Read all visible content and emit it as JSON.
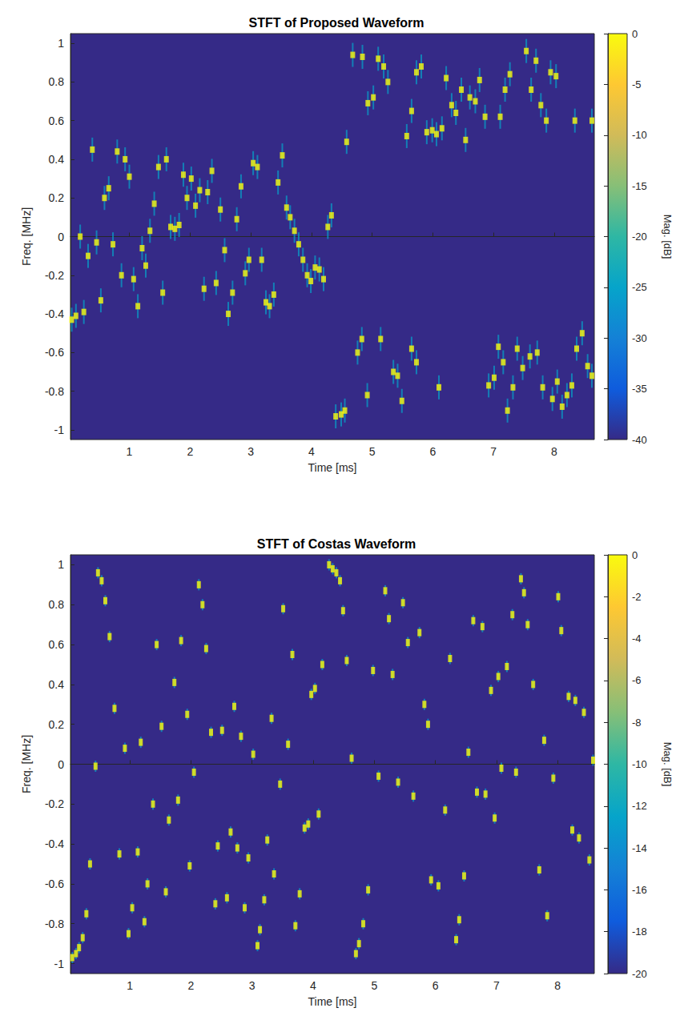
{
  "chart_data": [
    {
      "type": "heatmap",
      "title": "STFT of Proposed Waveform",
      "xlabel": "Time [ms]",
      "ylabel": "Freq. [MHz]",
      "xlim": [
        0.03,
        8.66
      ],
      "xticks": [
        1,
        2,
        3,
        4,
        5,
        6,
        7,
        8
      ],
      "ylim": [
        -1.05,
        1.05
      ],
      "yticks": [
        -1,
        -0.8,
        -0.6,
        -0.4,
        -0.2,
        0,
        0.2,
        0.4,
        0.6,
        0.8,
        1
      ],
      "colorbar": {
        "label": "Mag. [dB]",
        "range": [
          -40,
          0
        ],
        "ticks": [
          -40,
          -35,
          -30,
          -25,
          -20,
          -15,
          -10,
          -5,
          0
        ]
      },
      "cells": [
        [
          0.05,
          -0.43,
          0
        ],
        [
          0.12,
          -0.41,
          0
        ],
        [
          0.19,
          0,
          0
        ],
        [
          0.25,
          -0.39,
          0
        ],
        [
          0.32,
          -0.1,
          0
        ],
        [
          0.39,
          0.45,
          0
        ],
        [
          0.46,
          -0.03,
          0
        ],
        [
          0.53,
          -0.33,
          0
        ],
        [
          0.59,
          0.2,
          0
        ],
        [
          0.66,
          0.25,
          0
        ],
        [
          0.73,
          -0.04,
          0
        ],
        [
          0.8,
          0.44,
          0
        ],
        [
          0.87,
          -0.2,
          0
        ],
        [
          0.93,
          0.4,
          0
        ],
        [
          1,
          0.31,
          0
        ],
        [
          1.07,
          -0.22,
          0
        ],
        [
          1.14,
          -0.36,
          0
        ],
        [
          1.21,
          -0.06,
          0
        ],
        [
          1.27,
          -0.15,
          0
        ],
        [
          1.34,
          0.03,
          0
        ],
        [
          1.41,
          0.17,
          0
        ],
        [
          1.48,
          0.36,
          0
        ],
        [
          1.55,
          -0.29,
          0
        ],
        [
          1.61,
          0.4,
          0
        ],
        [
          1.68,
          0.05,
          0
        ],
        [
          1.75,
          0.04,
          0
        ],
        [
          1.82,
          0.06,
          0
        ],
        [
          1.89,
          0.32,
          0
        ],
        [
          1.95,
          0.2,
          0
        ],
        [
          2.02,
          0.3,
          0
        ],
        [
          2.09,
          0.16,
          0
        ],
        [
          2.16,
          0.24,
          0
        ],
        [
          2.23,
          -0.27,
          0
        ],
        [
          2.29,
          0.23,
          0
        ],
        [
          2.36,
          0.34,
          0
        ],
        [
          2.43,
          -0.24,
          0
        ],
        [
          2.5,
          0.14,
          0
        ],
        [
          2.57,
          -0.07,
          0
        ],
        [
          2.63,
          -0.4,
          0
        ],
        [
          2.7,
          -0.29,
          0
        ],
        [
          2.77,
          0.09,
          0
        ],
        [
          2.84,
          0.26,
          0
        ],
        [
          2.91,
          -0.19,
          0
        ],
        [
          2.97,
          -0.12,
          0
        ],
        [
          3.04,
          0.38,
          0
        ],
        [
          3.11,
          0.36,
          0
        ],
        [
          3.18,
          -0.12,
          0
        ],
        [
          3.25,
          -0.34,
          0
        ],
        [
          3.31,
          -0.36,
          0
        ],
        [
          3.38,
          -0.3,
          0
        ],
        [
          3.45,
          0.28,
          0
        ],
        [
          3.52,
          0.42,
          0
        ],
        [
          3.59,
          0.15,
          0
        ],
        [
          3.65,
          0.1,
          0
        ],
        [
          3.72,
          0.03,
          0
        ],
        [
          3.79,
          -0.04,
          0
        ],
        [
          3.86,
          -0.12,
          0
        ],
        [
          3.93,
          -0.2,
          0
        ],
        [
          3.99,
          -0.23,
          0
        ],
        [
          4.06,
          -0.16,
          0
        ],
        [
          4.13,
          -0.17,
          0
        ],
        [
          4.2,
          -0.22,
          0
        ],
        [
          4.27,
          0.05,
          0
        ],
        [
          4.33,
          0.11,
          0
        ],
        [
          4.58,
          0.49,
          0
        ],
        [
          4.68,
          0.94,
          0
        ],
        [
          4.84,
          0.93,
          0
        ],
        [
          4.93,
          0.69,
          0
        ],
        [
          5.02,
          0.72,
          0
        ],
        [
          5.1,
          0.92,
          0
        ],
        [
          5.19,
          0.88,
          0
        ],
        [
          5.26,
          0.8,
          0
        ],
        [
          5.57,
          0.52,
          0
        ],
        [
          5.65,
          0.65,
          0
        ],
        [
          5.73,
          0.85,
          0
        ],
        [
          5.81,
          0.88,
          0
        ],
        [
          5.9,
          0.54,
          0
        ],
        [
          5.99,
          0.55,
          0
        ],
        [
          6.06,
          0.53,
          0
        ],
        [
          6.15,
          0.56,
          0
        ],
        [
          6.22,
          0.82,
          0
        ],
        [
          6.31,
          0.68,
          0
        ],
        [
          6.38,
          0.64,
          0
        ],
        [
          6.47,
          0.76,
          0
        ],
        [
          6.54,
          0.5,
          0
        ],
        [
          6.61,
          0.72,
          0
        ],
        [
          6.7,
          0.7,
          0
        ],
        [
          6.77,
          0.81,
          0
        ],
        [
          6.86,
          0.62,
          0
        ],
        [
          7.11,
          0.62,
          0
        ],
        [
          7.19,
          0.76,
          0
        ],
        [
          7.27,
          0.84,
          0
        ],
        [
          7.54,
          0.96,
          0
        ],
        [
          7.62,
          0.76,
          0
        ],
        [
          7.7,
          0.91,
          0
        ],
        [
          7.78,
          0.68,
          0
        ],
        [
          7.87,
          0.6,
          0
        ],
        [
          7.94,
          0.85,
          0
        ],
        [
          8.03,
          0.83,
          0
        ],
        [
          8.34,
          0.6,
          0
        ],
        [
          8.62,
          0.6,
          0
        ],
        [
          4.4,
          -0.93,
          0
        ],
        [
          4.49,
          -0.92,
          0
        ],
        [
          4.55,
          -0.9,
          0
        ],
        [
          4.76,
          -0.6,
          0
        ],
        [
          4.83,
          -0.53,
          0
        ],
        [
          4.92,
          -0.82,
          0
        ],
        [
          5.14,
          -0.53,
          0
        ],
        [
          5.35,
          -0.7,
          0
        ],
        [
          5.42,
          -0.72,
          0
        ],
        [
          5.49,
          -0.85,
          0
        ],
        [
          5.65,
          -0.58,
          0
        ],
        [
          5.73,
          -0.65,
          0
        ],
        [
          6.1,
          -0.78,
          0
        ],
        [
          6.92,
          -0.77,
          0
        ],
        [
          7.01,
          -0.73,
          0
        ],
        [
          7.08,
          -0.57,
          0
        ],
        [
          7.16,
          -0.65,
          0
        ],
        [
          7.23,
          -0.9,
          0
        ],
        [
          7.32,
          -0.78,
          0
        ],
        [
          7.39,
          -0.58,
          0
        ],
        [
          7.48,
          -0.68,
          0
        ],
        [
          7.6,
          -0.62,
          0
        ],
        [
          7.72,
          -0.6,
          0
        ],
        [
          7.81,
          -0.78,
          0
        ],
        [
          7.97,
          -0.84,
          0
        ],
        [
          8.05,
          -0.75,
          0
        ],
        [
          8.13,
          -0.88,
          0
        ],
        [
          8.21,
          -0.82,
          0
        ],
        [
          8.29,
          -0.77,
          0
        ],
        [
          8.37,
          -0.58,
          0
        ],
        [
          8.46,
          -0.5,
          0
        ],
        [
          8.55,
          -0.67,
          0
        ],
        [
          8.62,
          -0.72,
          0
        ]
      ]
    },
    {
      "type": "heatmap",
      "title": "STFT of Costas Waveform",
      "xlabel": "Time [ms]",
      "ylabel": "Freq. [MHz]",
      "xlim": [
        0.03,
        8.6
      ],
      "xticks": [
        1,
        2,
        3,
        4,
        5,
        6,
        7,
        8
      ],
      "ylim": [
        -1.05,
        1.05
      ],
      "yticks": [
        -1,
        -0.8,
        -0.6,
        -0.4,
        -0.2,
        0,
        0.2,
        0.4,
        0.6,
        0.8,
        1
      ],
      "colorbar": {
        "label": "Mag. [dB]",
        "range": [
          -20,
          0
        ],
        "ticks": [
          -20,
          -18,
          -16,
          -14,
          -12,
          -10,
          -8,
          -6,
          -4,
          -2,
          0
        ]
      },
      "cells": [
        [
          0.06,
          -0.97,
          0
        ],
        [
          0.12,
          -0.95,
          0
        ],
        [
          0.17,
          -0.92,
          0
        ],
        [
          0.23,
          -0.87,
          0
        ],
        [
          0.29,
          -0.75,
          0
        ],
        [
          0.35,
          -0.5,
          0
        ],
        [
          0.44,
          -0.01,
          0
        ],
        [
          0.48,
          0.96,
          0
        ],
        [
          0.54,
          0.92,
          0
        ],
        [
          0.6,
          0.82,
          0
        ],
        [
          0.67,
          0.64,
          0
        ],
        [
          0.75,
          0.28,
          0
        ],
        [
          0.83,
          -0.45,
          0
        ],
        [
          0.92,
          0.08,
          0
        ],
        [
          0.98,
          -0.85,
          0
        ],
        [
          1.04,
          -0.72,
          0
        ],
        [
          1.13,
          -0.44,
          0
        ],
        [
          1.18,
          0.11,
          0
        ],
        [
          1.24,
          -0.79,
          0
        ],
        [
          1.29,
          -0.6,
          0
        ],
        [
          1.38,
          -0.2,
          0
        ],
        [
          1.44,
          0.6,
          0
        ],
        [
          1.52,
          0.19,
          0
        ],
        [
          1.59,
          -0.64,
          0
        ],
        [
          1.64,
          -0.28,
          0
        ],
        [
          1.73,
          0.41,
          0
        ],
        [
          1.79,
          -0.18,
          0
        ],
        [
          1.84,
          0.62,
          0
        ],
        [
          1.94,
          0.25,
          0
        ],
        [
          1.98,
          -0.51,
          0
        ],
        [
          2.05,
          -0.04,
          0
        ],
        [
          2.13,
          0.9,
          0
        ],
        [
          2.19,
          0.8,
          0
        ],
        [
          2.25,
          0.58,
          0
        ],
        [
          2.33,
          0.16,
          0
        ],
        [
          2.4,
          -0.7,
          0
        ],
        [
          2.44,
          -0.41,
          0
        ],
        [
          2.51,
          0.17,
          0
        ],
        [
          2.59,
          -0.67,
          0
        ],
        [
          2.65,
          -0.34,
          0
        ],
        [
          2.71,
          0.29,
          0
        ],
        [
          2.76,
          -0.42,
          0
        ],
        [
          2.82,
          0.14,
          0
        ],
        [
          2.88,
          -0.72,
          0
        ],
        [
          2.94,
          -0.47,
          0
        ],
        [
          3.02,
          0.05,
          0
        ],
        [
          3.09,
          -0.91,
          0
        ],
        [
          3.13,
          -0.83,
          0
        ],
        [
          3.2,
          -0.68,
          0
        ],
        [
          3.25,
          -0.38,
          0
        ],
        [
          3.32,
          0.23,
          0
        ],
        [
          3.36,
          -0.55,
          0
        ],
        [
          3.46,
          -0.1,
          0
        ],
        [
          3.51,
          0.78,
          0
        ],
        [
          3.59,
          0.1,
          0
        ],
        [
          3.66,
          0.55,
          0
        ],
        [
          3.71,
          -0.81,
          0
        ],
        [
          3.78,
          -0.65,
          0
        ],
        [
          3.86,
          -0.32,
          0
        ],
        [
          3.92,
          -0.3,
          0
        ],
        [
          3.97,
          0.35,
          0
        ],
        [
          4.03,
          0.38,
          0
        ],
        [
          4.09,
          -0.25,
          0
        ],
        [
          4.15,
          0.5,
          0
        ],
        [
          4.26,
          1,
          0
        ],
        [
          4.32,
          0.98,
          0
        ],
        [
          4.38,
          0.96,
          0
        ],
        [
          4.44,
          0.92,
          0
        ],
        [
          4.49,
          0.77,
          0
        ],
        [
          4.55,
          0.52,
          0
        ],
        [
          4.63,
          0.03,
          0
        ],
        [
          4.7,
          -0.95,
          0
        ],
        [
          4.75,
          -0.9,
          0
        ],
        [
          4.82,
          -0.8,
          0
        ],
        [
          4.9,
          -0.63,
          0
        ],
        [
          4.98,
          0.47,
          0
        ],
        [
          5.07,
          -0.06,
          0
        ],
        [
          5.18,
          0.87,
          0
        ],
        [
          5.24,
          0.73,
          0
        ],
        [
          5.3,
          0.45,
          0
        ],
        [
          5.39,
          -0.09,
          0
        ],
        [
          5.47,
          0.81,
          0
        ],
        [
          5.55,
          0.61,
          0
        ],
        [
          5.64,
          -0.16,
          0
        ],
        [
          5.74,
          0.66,
          0
        ],
        [
          5.82,
          0.3,
          0
        ],
        [
          5.88,
          0.2,
          0
        ],
        [
          5.93,
          -0.58,
          0
        ],
        [
          6.05,
          -0.61,
          0
        ],
        [
          6.16,
          -0.23,
          0
        ],
        [
          6.24,
          0.53,
          0
        ],
        [
          6.34,
          -0.88,
          0
        ],
        [
          6.39,
          -0.78,
          0
        ],
        [
          6.47,
          -0.56,
          0
        ],
        [
          6.54,
          0.06,
          0
        ],
        [
          6.62,
          0.72,
          0
        ],
        [
          6.68,
          -0.14,
          0
        ],
        [
          6.77,
          0.69,
          0
        ],
        [
          6.82,
          -0.15,
          0
        ],
        [
          6.91,
          0.37,
          0
        ],
        [
          6.97,
          -0.27,
          0
        ],
        [
          7.03,
          0.44,
          0
        ],
        [
          7.08,
          -0.02,
          0
        ],
        [
          7.17,
          0.49,
          0
        ],
        [
          7.26,
          0.75,
          0
        ],
        [
          7.32,
          -0.04,
          0
        ],
        [
          7.4,
          0.93,
          0
        ],
        [
          7.45,
          0.86,
          0
        ],
        [
          7.51,
          0.7,
          0
        ],
        [
          7.6,
          0.4,
          0
        ],
        [
          7.7,
          -0.53,
          0
        ],
        [
          7.78,
          0.12,
          0
        ],
        [
          7.83,
          -0.76,
          0
        ],
        [
          7.93,
          -0.07,
          0
        ],
        [
          8.01,
          0.84,
          0
        ],
        [
          8.06,
          0.67,
          0
        ],
        [
          8.18,
          0.34,
          0
        ],
        [
          8.24,
          -0.33,
          0
        ],
        [
          8.29,
          0.32,
          0
        ],
        [
          8.35,
          -0.37,
          0
        ],
        [
          8.43,
          0.26,
          0
        ],
        [
          8.52,
          -0.48,
          0
        ],
        [
          8.58,
          0.02,
          0
        ]
      ]
    }
  ]
}
